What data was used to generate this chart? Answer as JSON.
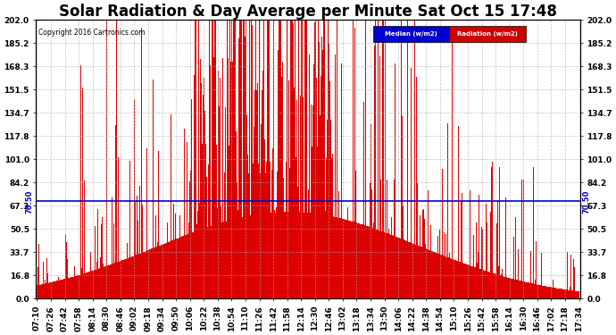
{
  "title": "Solar Radiation & Day Average per Minute Sat Oct 15 17:48",
  "copyright": "Copyright 2016 Cartronics.com",
  "legend_median": "Median (w/m2)",
  "legend_radiation": "Radiation (w/m2)",
  "ymin": 0.0,
  "ymax": 202.0,
  "yticks": [
    0.0,
    16.8,
    33.7,
    50.5,
    67.3,
    84.2,
    101.0,
    117.8,
    134.7,
    151.5,
    168.3,
    185.2,
    202.0
  ],
  "median_value": 70.5,
  "median_label": "70.50",
  "bar_color": "#dd0000",
  "median_color": "#0000cc",
  "background_color": "#ffffff",
  "grid_color": "#aaaaaa",
  "title_fontsize": 12,
  "axis_fontsize": 6.5,
  "start_time_str": "07:10",
  "end_time_str": "17:34",
  "minutes_per_bar": 1,
  "tick_interval_minutes": 16
}
